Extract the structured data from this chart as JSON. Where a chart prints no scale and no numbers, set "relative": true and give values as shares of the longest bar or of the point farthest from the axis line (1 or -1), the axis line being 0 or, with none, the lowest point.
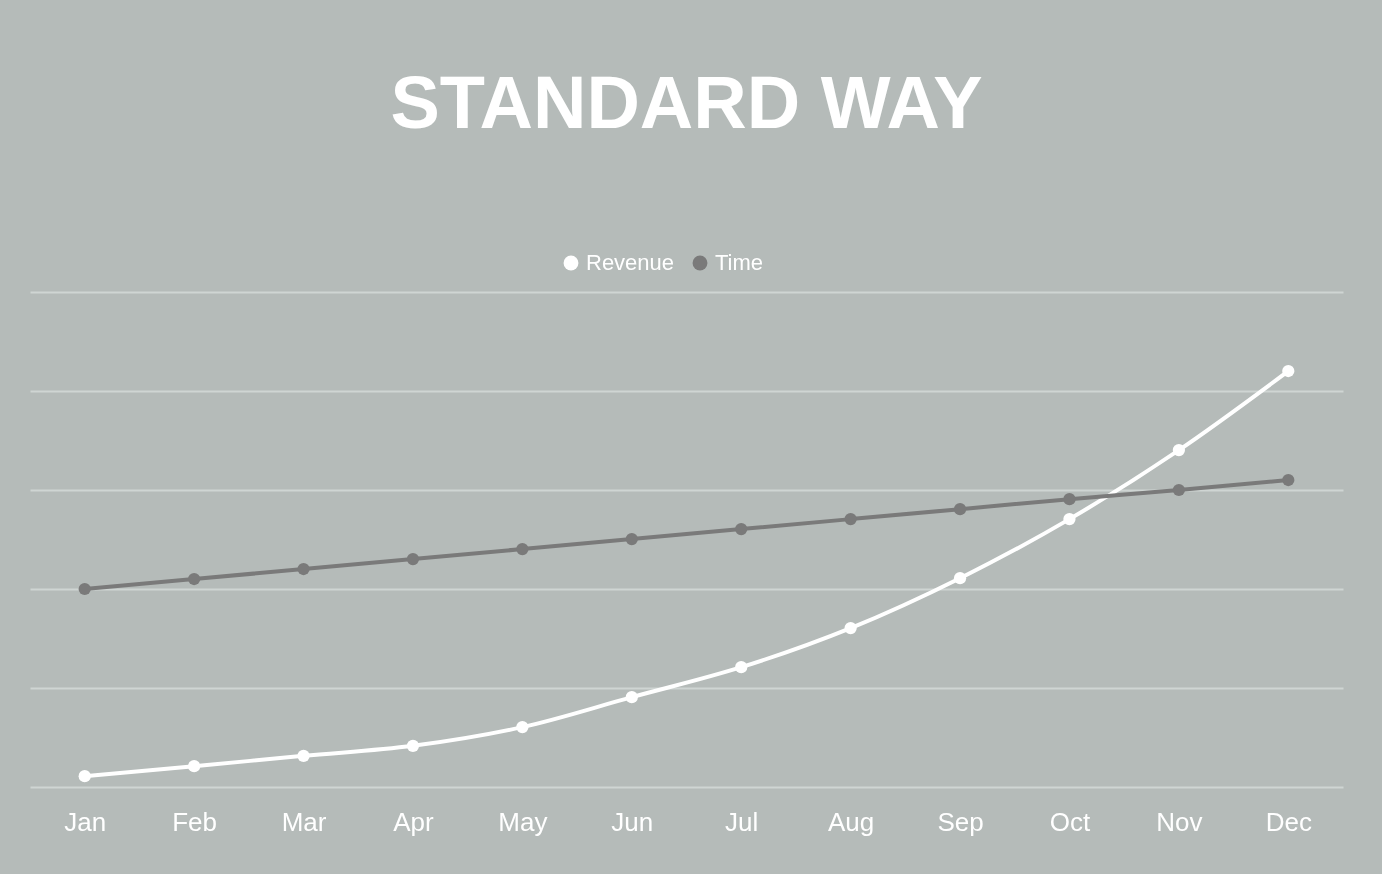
{
  "chart_data": {
    "type": "line",
    "title": "STANDARD WAY",
    "relative": true,
    "categories": [
      "Jan",
      "Feb",
      "Mar",
      "Apr",
      "May",
      "Jun",
      "Jul",
      "Aug",
      "Sep",
      "Oct",
      "Nov",
      "Dec"
    ],
    "series": [
      {
        "name": "Revenue",
        "color": "#ffffff",
        "values": [
          0.026,
          0.05,
          0.075,
          0.099,
          0.144,
          0.216,
          0.288,
          0.382,
          0.502,
          0.644,
          0.81,
          1
        ]
      },
      {
        "name": "Time",
        "color": "#7a7a7a",
        "values": [
          0.476,
          0.5,
          0.524,
          0.548,
          0.572,
          0.596,
          0.62,
          0.644,
          0.668,
          0.692,
          0.714,
          0.738
        ]
      }
    ],
    "legend": "top",
    "grid": "y",
    "marker": "circle",
    "line_style": "solid"
  }
}
